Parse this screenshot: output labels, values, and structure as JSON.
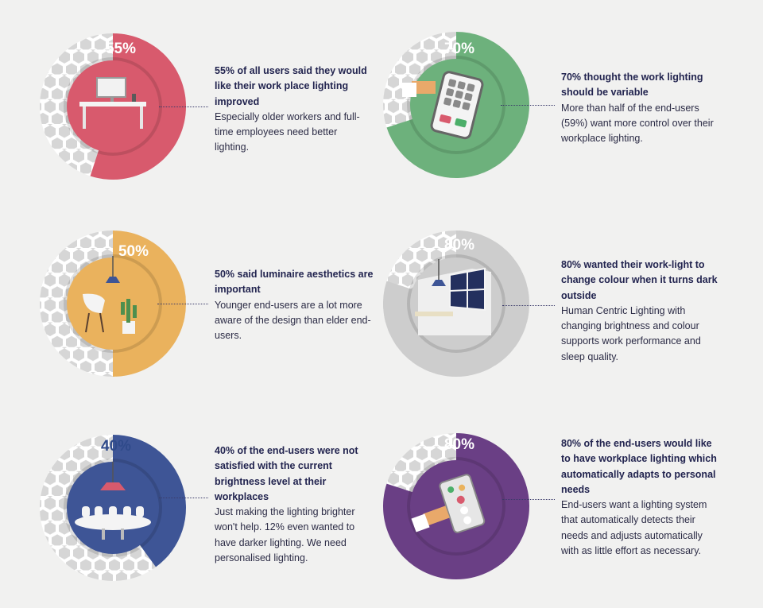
{
  "colors": {
    "track": "#dcdcdc",
    "hex": "#d2d2d2",
    "background": "#f1f1f0"
  },
  "chart_data": [
    {
      "type": "pie",
      "value": 55,
      "percent_label": "55%",
      "color": "#d85a6d",
      "icon": "desk-monitor-icon",
      "heading": "55% of all users said they would like their work place lighting improved",
      "body": "Especially older workers and full-time employees need better lighting."
    },
    {
      "type": "pie",
      "value": 70,
      "percent_label": "70%",
      "color": "#6db17c",
      "icon": "control-panel-icon",
      "heading": "70% thought the work lighting should be variable",
      "body": "More than half of the end-users (59%) want more control over their workplace lighting."
    },
    {
      "type": "pie",
      "value": 50,
      "percent_label": "50%",
      "color": "#eab25d",
      "icon": "chair-lamp-plant-icon",
      "heading": "50% said luminaire aesthetics are important",
      "body": "Younger end-users are a lot more aware of the design than elder end-users."
    },
    {
      "type": "pie",
      "value": 80,
      "percent_label": "80%",
      "color": "#cdcdcd",
      "icon": "night-window-icon",
      "heading": "80% wanted their work-light to change colour when it turns dark outside",
      "body": "Human Centric Lighting with changing brightness and colour supports work performance and sleep quality."
    },
    {
      "type": "pie",
      "value": 40,
      "percent_label": "40%",
      "color": "#3e5596",
      "icon": "meeting-table-icon",
      "heading": "40% of the end-users were not satisfied with the current brightness level at their workplaces",
      "body": "Just making the lighting brighter won't help. 12% even wanted to have darker lighting. We need personalised lighting."
    },
    {
      "type": "pie",
      "value": 80,
      "percent_label": "80%",
      "color": "#6a3f85",
      "icon": "smart-switch-icon",
      "heading": "80% of the end-users would like to have workplace lighting which automatically adapts to personal needs",
      "body": "End-users want a lighting system that automatically detects their needs and adjusts automatically with as little effort as necessary."
    }
  ]
}
